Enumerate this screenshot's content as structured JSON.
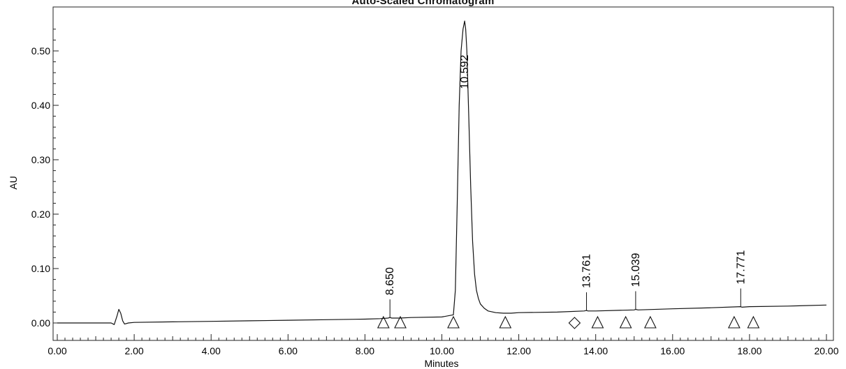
{
  "chart_data": {
    "type": "line",
    "title": "Auto-Scaled Chromatogram",
    "xlabel": "Minutes",
    "ylabel": "AU",
    "xlim": [
      0,
      20
    ],
    "ylim": [
      -0.03,
      0.56
    ],
    "grid": false,
    "x_ticks": [
      "0.00",
      "2.00",
      "4.00",
      "6.00",
      "8.00",
      "10.00",
      "12.00",
      "14.00",
      "16.00",
      "18.00",
      "20.00"
    ],
    "y_ticks": [
      "0.00",
      "0.10",
      "0.20",
      "0.30",
      "0.40",
      "0.50"
    ],
    "series": [
      {
        "x": [
          0,
          1.4,
          1.48,
          1.55,
          1.6,
          1.65,
          1.7,
          1.75,
          1.85,
          2.0,
          3,
          4,
          5,
          6,
          7,
          8,
          8.4,
          8.6,
          8.65,
          8.7,
          8.9,
          9.2,
          10.0,
          10.3,
          10.35,
          10.4,
          10.45,
          10.5,
          10.55,
          10.592,
          10.62,
          10.65,
          10.7,
          10.75,
          10.8,
          10.85,
          10.9,
          10.95,
          11.0,
          11.1,
          11.2,
          11.4,
          11.6,
          11.8,
          12.0,
          13.0,
          13.7,
          13.761,
          13.8,
          14.0,
          15.0,
          15.039,
          15.1,
          16,
          17,
          17.771,
          17.8,
          18,
          19,
          20
        ],
        "y": [
          0.0,
          0.0,
          -0.003,
          0.012,
          0.025,
          0.018,
          0.004,
          -0.002,
          0.0,
          0.001,
          0.002,
          0.003,
          0.004,
          0.005,
          0.006,
          0.007,
          0.008,
          0.009,
          0.01,
          0.009,
          0.009,
          0.01,
          0.011,
          0.015,
          0.06,
          0.22,
          0.4,
          0.5,
          0.54,
          0.555,
          0.54,
          0.5,
          0.38,
          0.25,
          0.15,
          0.09,
          0.06,
          0.045,
          0.035,
          0.027,
          0.022,
          0.019,
          0.018,
          0.018,
          0.019,
          0.02,
          0.022,
          0.023,
          0.022,
          0.022,
          0.024,
          0.025,
          0.024,
          0.026,
          0.028,
          0.03,
          0.029,
          0.03,
          0.031,
          0.033
        ]
      }
    ],
    "peak_labels": [
      {
        "x": 8.65,
        "y": 0.01,
        "label": "8.650"
      },
      {
        "x": 10.592,
        "y": 0.555,
        "label": "10.592"
      },
      {
        "x": 13.761,
        "y": 0.023,
        "label": "13.761"
      },
      {
        "x": 15.039,
        "y": 0.025,
        "label": "15.039"
      },
      {
        "x": 17.771,
        "y": 0.03,
        "label": "17.771"
      }
    ],
    "peak_markers": [
      {
        "x": 8.48,
        "y": 0.0,
        "shape": "triangle"
      },
      {
        "x": 8.92,
        "y": 0.0,
        "shape": "triangle"
      },
      {
        "x": 10.3,
        "y": 0.0,
        "shape": "triangle"
      },
      {
        "x": 11.65,
        "y": 0.0,
        "shape": "triangle"
      },
      {
        "x": 13.45,
        "y": 0.0,
        "shape": "diamond"
      },
      {
        "x": 14.05,
        "y": 0.0,
        "shape": "triangle"
      },
      {
        "x": 14.78,
        "y": 0.0,
        "shape": "triangle"
      },
      {
        "x": 15.42,
        "y": 0.0,
        "shape": "triangle"
      },
      {
        "x": 17.6,
        "y": 0.0,
        "shape": "triangle"
      },
      {
        "x": 18.1,
        "y": 0.0,
        "shape": "triangle"
      }
    ]
  }
}
